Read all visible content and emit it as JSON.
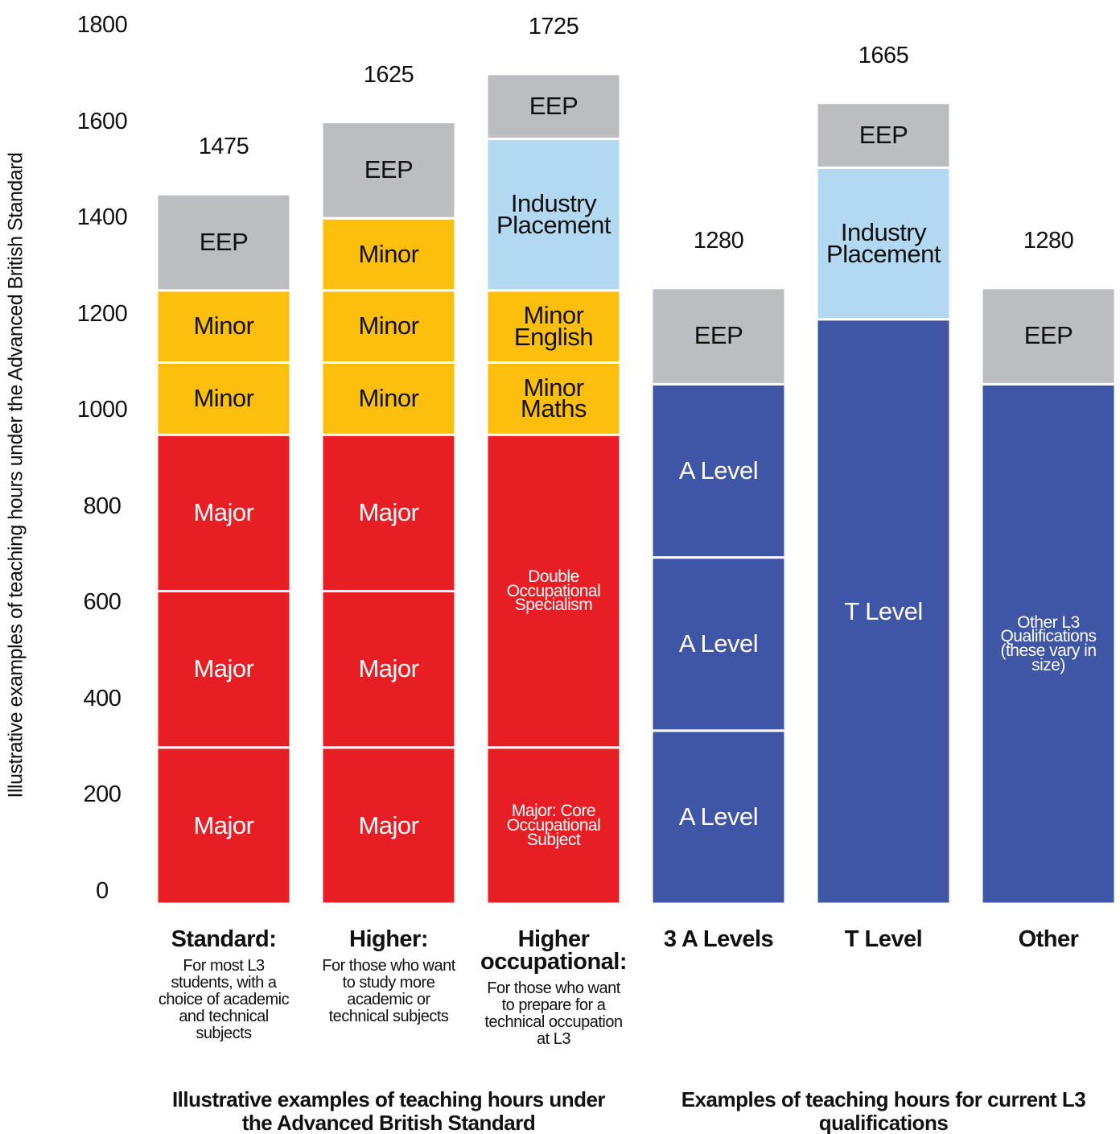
{
  "chart_data": {
    "type": "stacked-bar",
    "y_label": "Illustrative examples of teaching hours under the Advanced British Standard",
    "ylim": [
      0,
      1800
    ],
    "yticks": [
      0,
      200,
      400,
      600,
      800,
      1000,
      1200,
      1400,
      1600,
      1800
    ],
    "groups": [
      {
        "label": "Illustrative examples of teaching hours under the Advanced British Standard",
        "bars": [
          0,
          2
        ]
      },
      {
        "label": "Examples of teaching hours for current L3 qualifications",
        "bars": [
          3,
          5
        ]
      }
    ],
    "bars": [
      {
        "category": "Standard:",
        "description": "For most L3 students, with a choice of academic and technical subjects",
        "total": 1475,
        "segments": [
          {
            "name": "Major",
            "value": 325,
            "color": "#e81e25"
          },
          {
            "name": "Major",
            "value": 325,
            "color": "#e81e25"
          },
          {
            "name": "Major",
            "value": 325,
            "color": "#e81e25"
          },
          {
            "name": "Minor",
            "value": 150,
            "color": "#fdbf0e"
          },
          {
            "name": "Minor",
            "value": 150,
            "color": "#fdbf0e"
          },
          {
            "name": "EEP",
            "value": 200,
            "color": "#bcbdc0"
          }
        ]
      },
      {
        "category": "Higher:",
        "description": "For those who want to study more academic or technical subjects",
        "total": 1625,
        "segments": [
          {
            "name": "Major",
            "value": 325,
            "color": "#e81e25"
          },
          {
            "name": "Major",
            "value": 325,
            "color": "#e81e25"
          },
          {
            "name": "Major",
            "value": 325,
            "color": "#e81e25"
          },
          {
            "name": "Minor",
            "value": 150,
            "color": "#fdbf0e"
          },
          {
            "name": "Minor",
            "value": 150,
            "color": "#fdbf0e"
          },
          {
            "name": "Minor",
            "value": 150,
            "color": "#fdbf0e"
          },
          {
            "name": "EEP",
            "value": 200,
            "color": "#bcbdc0"
          }
        ]
      },
      {
        "category": "Higher occupational:",
        "description": "For those who want to prepare for a technical occupation at L3",
        "total": 1725,
        "segments": [
          {
            "name": "Major: Core Occupational Subject",
            "value": 325,
            "color": "#e81e25"
          },
          {
            "name": "Double Occupational Specialism",
            "value": 650,
            "color": "#e81e25"
          },
          {
            "name": "Minor Maths",
            "value": 150,
            "color": "#fdbf0e"
          },
          {
            "name": "Minor English",
            "value": 150,
            "color": "#fdbf0e"
          },
          {
            "name": "Industry Placement",
            "value": 315,
            "color": "#b3d8f2"
          },
          {
            "name": "EEP",
            "value": 135,
            "color": "#bcbdc0"
          }
        ]
      },
      {
        "category": "3 A Levels",
        "total": 1280,
        "segments": [
          {
            "name": "A Level",
            "value": 360,
            "color": "#3f56a6"
          },
          {
            "name": "A Level",
            "value": 360,
            "color": "#3f56a6"
          },
          {
            "name": "A Level",
            "value": 360,
            "color": "#3f56a6"
          },
          {
            "name": "EEP",
            "value": 200,
            "color": "#bcbdc0"
          }
        ]
      },
      {
        "category": "T Level",
        "total": 1665,
        "segments": [
          {
            "name": "T Level",
            "value": 1215,
            "color": "#3f56a6"
          },
          {
            "name": "Industry Placement",
            "value": 315,
            "color": "#b3d8f2"
          },
          {
            "name": "EEP",
            "value": 135,
            "color": "#bcbdc0"
          }
        ]
      },
      {
        "category": "Other",
        "total": 1280,
        "segments": [
          {
            "name": "Other L3 Qualifications (these vary in size)",
            "value": 1080,
            "color": "#3f56a6"
          },
          {
            "name": "EEP",
            "value": 200,
            "color": "#bcbdc0"
          }
        ]
      }
    ]
  }
}
